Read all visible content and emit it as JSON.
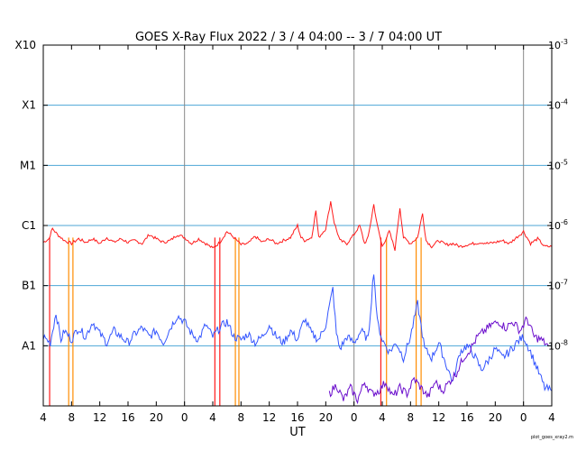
{
  "chart_data": {
    "type": "line",
    "title": "GOES X-Ray Flux   2022 /  3 /  4   04:00 --  3 /  7   04:00   UT",
    "xlabel": "UT",
    "footer": "plot_goes_xray2.m",
    "x_range_hours": [
      0,
      72
    ],
    "x_ticks": [
      {
        "h": 0,
        "label": "4"
      },
      {
        "h": 4,
        "label": "8"
      },
      {
        "h": 8,
        "label": "12"
      },
      {
        "h": 12,
        "label": "16"
      },
      {
        "h": 16,
        "label": "20"
      },
      {
        "h": 20,
        "label": "0"
      },
      {
        "h": 24,
        "label": "4"
      },
      {
        "h": 28,
        "label": "8"
      },
      {
        "h": 32,
        "label": "12"
      },
      {
        "h": 36,
        "label": "16"
      },
      {
        "h": 40,
        "label": "20"
      },
      {
        "h": 44,
        "label": "0"
      },
      {
        "h": 48,
        "label": "4"
      },
      {
        "h": 52,
        "label": "8"
      },
      {
        "h": 56,
        "label": "12"
      },
      {
        "h": 60,
        "label": "16"
      },
      {
        "h": 64,
        "label": "20"
      },
      {
        "h": 68,
        "label": "0"
      },
      {
        "h": 72,
        "label": "4"
      }
    ],
    "day_boundaries_hours": [
      20,
      44,
      68
    ],
    "y_scale": "log",
    "y_range_log10": [
      -9,
      -3
    ],
    "left_labels": [
      {
        "exp": -3,
        "label": "X10"
      },
      {
        "exp": -4,
        "label": "X1"
      },
      {
        "exp": -5,
        "label": "M1"
      },
      {
        "exp": -6,
        "label": "C1"
      },
      {
        "exp": -7,
        "label": "B1"
      },
      {
        "exp": -8,
        "label": "A1"
      }
    ],
    "right_labels": [
      {
        "exp": -3,
        "base": "10",
        "power": "-3"
      },
      {
        "exp": -4,
        "base": "10",
        "power": "-4"
      },
      {
        "exp": -5,
        "base": "10",
        "power": "-5"
      },
      {
        "exp": -6,
        "base": "10",
        "power": "-6"
      },
      {
        "exp": -7,
        "base": "10",
        "power": "-7"
      },
      {
        "exp": -8,
        "base": "10",
        "power": "-8"
      }
    ],
    "grid_colors": {
      "horizontal": "#4da6d6",
      "vertical": "#888888"
    },
    "series": [
      {
        "color": "#ff1a1a",
        "points_log10": [
          [
            0.0,
            -6.28
          ],
          [
            0.8,
            -6.22
          ],
          [
            1.3,
            -6.05
          ],
          [
            2.0,
            -6.15
          ],
          [
            3.0,
            -6.25
          ],
          [
            4.0,
            -6.3
          ],
          [
            5.0,
            -6.22
          ],
          [
            6.0,
            -6.28
          ],
          [
            7.0,
            -6.22
          ],
          [
            8.0,
            -6.3
          ],
          [
            9.0,
            -6.2
          ],
          [
            10.0,
            -6.28
          ],
          [
            11.0,
            -6.22
          ],
          [
            12.0,
            -6.28
          ],
          [
            13.0,
            -6.25
          ],
          [
            14.0,
            -6.3
          ],
          [
            15.0,
            -6.15
          ],
          [
            16.0,
            -6.22
          ],
          [
            17.0,
            -6.28
          ],
          [
            18.0,
            -6.25
          ],
          [
            19.0,
            -6.15
          ],
          [
            20.0,
            -6.2
          ],
          [
            21.0,
            -6.3
          ],
          [
            22.0,
            -6.22
          ],
          [
            23.0,
            -6.3
          ],
          [
            24.0,
            -6.38
          ],
          [
            25.0,
            -6.28
          ],
          [
            26.0,
            -6.1
          ],
          [
            27.0,
            -6.2
          ],
          [
            28.0,
            -6.32
          ],
          [
            29.0,
            -6.3
          ],
          [
            30.0,
            -6.18
          ],
          [
            31.0,
            -6.28
          ],
          [
            32.0,
            -6.22
          ],
          [
            33.0,
            -6.3
          ],
          [
            34.0,
            -6.25
          ],
          [
            35.0,
            -6.2
          ],
          [
            36.0,
            -6.0
          ],
          [
            36.5,
            -6.2
          ],
          [
            37.0,
            -6.25
          ],
          [
            38.0,
            -6.2
          ],
          [
            38.6,
            -5.75
          ],
          [
            39.0,
            -6.2
          ],
          [
            40.0,
            -6.05
          ],
          [
            40.7,
            -5.6
          ],
          [
            41.2,
            -5.95
          ],
          [
            42.0,
            -6.25
          ],
          [
            43.0,
            -6.3
          ],
          [
            44.0,
            -6.15
          ],
          [
            44.8,
            -6.0
          ],
          [
            45.5,
            -6.3
          ],
          [
            46.0,
            -6.2
          ],
          [
            46.8,
            -5.65
          ],
          [
            47.3,
            -6.0
          ],
          [
            48.0,
            -6.35
          ],
          [
            49.0,
            -6.1
          ],
          [
            49.8,
            -6.4
          ],
          [
            50.5,
            -5.7
          ],
          [
            51.0,
            -6.2
          ],
          [
            52.0,
            -6.3
          ],
          [
            53.0,
            -6.2
          ],
          [
            53.7,
            -5.8
          ],
          [
            54.2,
            -6.25
          ],
          [
            55.0,
            -6.35
          ],
          [
            56.0,
            -6.25
          ],
          [
            57.0,
            -6.32
          ],
          [
            58.0,
            -6.3
          ],
          [
            59.0,
            -6.35
          ],
          [
            60.0,
            -6.32
          ],
          [
            61.0,
            -6.3
          ],
          [
            62.0,
            -6.28
          ],
          [
            63.0,
            -6.3
          ],
          [
            64.0,
            -6.28
          ],
          [
            65.0,
            -6.25
          ],
          [
            66.0,
            -6.3
          ],
          [
            67.0,
            -6.2
          ],
          [
            68.0,
            -6.1
          ],
          [
            69.0,
            -6.3
          ],
          [
            70.0,
            -6.22
          ],
          [
            71.0,
            -6.35
          ],
          [
            72.0,
            -6.35
          ]
        ]
      },
      {
        "color": "#3355ff",
        "points_log10": [
          [
            0.0,
            -7.85
          ],
          [
            1.0,
            -7.95
          ],
          [
            1.8,
            -7.45
          ],
          [
            2.5,
            -7.9
          ],
          [
            3.0,
            -7.75
          ],
          [
            4.0,
            -7.9
          ],
          [
            5.0,
            -7.7
          ],
          [
            6.0,
            -7.85
          ],
          [
            7.0,
            -7.6
          ],
          [
            8.0,
            -7.8
          ],
          [
            9.0,
            -7.95
          ],
          [
            10.0,
            -7.75
          ],
          [
            11.0,
            -7.85
          ],
          [
            12.0,
            -7.95
          ],
          [
            13.0,
            -7.8
          ],
          [
            14.0,
            -7.7
          ],
          [
            15.0,
            -7.85
          ],
          [
            16.0,
            -7.75
          ],
          [
            17.0,
            -7.95
          ],
          [
            18.0,
            -7.7
          ],
          [
            19.0,
            -7.5
          ],
          [
            20.0,
            -7.6
          ],
          [
            21.0,
            -7.8
          ],
          [
            22.0,
            -7.9
          ],
          [
            23.0,
            -7.65
          ],
          [
            24.0,
            -7.85
          ],
          [
            25.0,
            -7.7
          ],
          [
            26.0,
            -7.6
          ],
          [
            27.0,
            -7.85
          ],
          [
            28.0,
            -7.9
          ],
          [
            29.0,
            -7.8
          ],
          [
            30.0,
            -7.95
          ],
          [
            31.0,
            -7.85
          ],
          [
            32.0,
            -7.65
          ],
          [
            33.0,
            -7.85
          ],
          [
            34.0,
            -7.95
          ],
          [
            35.0,
            -7.75
          ],
          [
            36.0,
            -7.9
          ],
          [
            37.0,
            -7.55
          ],
          [
            38.0,
            -7.8
          ],
          [
            39.0,
            -7.9
          ],
          [
            40.0,
            -7.65
          ],
          [
            41.0,
            -7.05
          ],
          [
            41.5,
            -7.8
          ],
          [
            42.0,
            -8.05
          ],
          [
            43.0,
            -7.85
          ],
          [
            44.0,
            -7.95
          ],
          [
            45.0,
            -7.75
          ],
          [
            46.0,
            -7.9
          ],
          [
            46.8,
            -6.75
          ],
          [
            47.3,
            -7.6
          ],
          [
            48.0,
            -7.9
          ],
          [
            49.0,
            -8.1
          ],
          [
            50.0,
            -7.95
          ],
          [
            51.0,
            -8.2
          ],
          [
            52.0,
            -7.85
          ],
          [
            53.0,
            -7.3
          ],
          [
            54.0,
            -8.05
          ],
          [
            55.0,
            -8.2
          ],
          [
            56.0,
            -7.95
          ],
          [
            57.0,
            -8.3
          ],
          [
            58.0,
            -8.6
          ],
          [
            59.0,
            -8.1
          ],
          [
            60.0,
            -8.0
          ],
          [
            61.0,
            -8.15
          ],
          [
            62.0,
            -8.4
          ],
          [
            63.0,
            -8.25
          ],
          [
            64.0,
            -8.05
          ],
          [
            65.0,
            -8.2
          ],
          [
            66.0,
            -8.1
          ],
          [
            67.0,
            -7.95
          ],
          [
            68.0,
            -7.85
          ],
          [
            69.0,
            -8.1
          ],
          [
            70.0,
            -8.4
          ],
          [
            71.0,
            -8.7
          ],
          [
            72.0,
            -8.75
          ]
        ]
      },
      {
        "color": "#6a0dcc",
        "points_log10": [
          [
            40.5,
            -8.8
          ],
          [
            41.5,
            -8.65
          ],
          [
            42.5,
            -8.9
          ],
          [
            43.5,
            -8.7
          ],
          [
            44.5,
            -8.9
          ],
          [
            45.5,
            -8.6
          ],
          [
            46.5,
            -8.8
          ],
          [
            47.5,
            -8.75
          ],
          [
            48.5,
            -8.6
          ],
          [
            49.5,
            -8.85
          ],
          [
            50.5,
            -8.7
          ],
          [
            51.5,
            -8.8
          ],
          [
            52.5,
            -8.55
          ],
          [
            53.5,
            -8.7
          ],
          [
            54.5,
            -8.85
          ],
          [
            55.5,
            -8.6
          ],
          [
            56.5,
            -8.75
          ],
          [
            57.5,
            -8.6
          ],
          [
            58.5,
            -8.45
          ],
          [
            59.5,
            -8.2
          ],
          [
            60.5,
            -8.05
          ],
          [
            61.5,
            -7.85
          ],
          [
            62.5,
            -7.75
          ],
          [
            63.5,
            -7.65
          ],
          [
            64.5,
            -7.6
          ],
          [
            65.5,
            -7.7
          ],
          [
            66.5,
            -7.6
          ],
          [
            67.5,
            -7.75
          ],
          [
            68.5,
            -7.55
          ],
          [
            69.5,
            -7.85
          ],
          [
            70.5,
            -7.9
          ],
          [
            71.5,
            -8.0
          ]
        ]
      }
    ],
    "dropouts": [
      {
        "h": 0.9,
        "color": "#ff1a1a"
      },
      {
        "h": 3.6,
        "color": "#ff8c00"
      },
      {
        "h": 4.2,
        "color": "#ff8c00"
      },
      {
        "h": 24.3,
        "color": "#ff1a1a"
      },
      {
        "h": 25.0,
        "color": "#ff1a1a"
      },
      {
        "h": 27.2,
        "color": "#ff8c00"
      },
      {
        "h": 27.7,
        "color": "#ff8c00"
      },
      {
        "h": 47.8,
        "color": "#ff1a1a"
      },
      {
        "h": 48.6,
        "color": "#ff8c00"
      },
      {
        "h": 52.8,
        "color": "#ff8c00"
      },
      {
        "h": 53.5,
        "color": "#ff8c00"
      }
    ]
  }
}
